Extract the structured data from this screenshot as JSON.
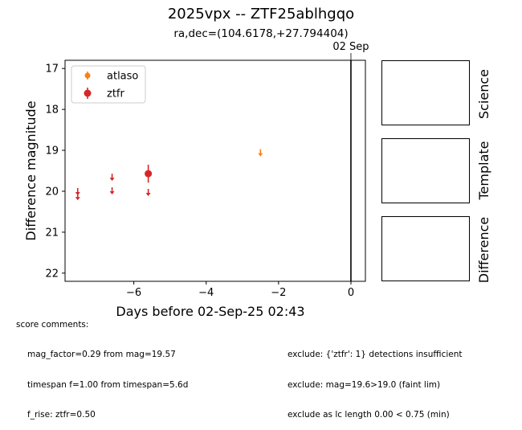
{
  "title": "2025vpx -- ZTF25ablhgqo",
  "subtitle": "ra,dec=(104.6178,+27.794404)",
  "chart_data": {
    "type": "scatter",
    "xlabel": "Days before 02-Sep-25 02:43",
    "ylabel": "Difference magnitude",
    "xlim": [
      -7.9,
      0.4
    ],
    "ylim": [
      22.2,
      16.8
    ],
    "y_inverted": true,
    "xticks": [
      -6,
      -4,
      -2,
      0
    ],
    "xtick_labels": [
      "−6",
      "−4",
      "−2",
      "0"
    ],
    "yticks": [
      17,
      18,
      19,
      20,
      21,
      22
    ],
    "ytick_labels": [
      "17",
      "18",
      "19",
      "20",
      "21",
      "22"
    ],
    "grid": false,
    "legend_position": "top-left",
    "vline": {
      "x": 0,
      "label": "02 Sep"
    },
    "series": [
      {
        "name": "atlaso",
        "color": "#ff7f0e",
        "detections": [],
        "upper_limits": [
          {
            "x": -2.5,
            "y": 19.05
          }
        ]
      },
      {
        "name": "ztfr",
        "color": "#d62728",
        "detections": [
          {
            "x": -5.6,
            "y": 19.57,
            "err": 0.22
          }
        ],
        "upper_limits": [
          {
            "x": -7.55,
            "y": 20.0
          },
          {
            "x": -7.55,
            "y": 20.12
          },
          {
            "x": -6.6,
            "y": 19.65
          },
          {
            "x": -6.6,
            "y": 19.98
          },
          {
            "x": -5.6,
            "y": 20.02
          }
        ]
      }
    ]
  },
  "cutouts": [
    {
      "label": "Science"
    },
    {
      "label": "Template"
    },
    {
      "label": "Difference"
    }
  ],
  "comments": {
    "header": "score comments:",
    "left": [
      "mag_factor=0.29 from mag=19.57",
      "timespan f=1.00 from timespan=5.6d",
      "f_rise: ztfr=0.50"
    ],
    "right": [
      "exclude: {'ztfr': 1} detections insufficient",
      "exclude: mag=19.6>19.0 (faint lim)",
      "exclude as lc length 0.00 < 0.75 (min)"
    ]
  }
}
